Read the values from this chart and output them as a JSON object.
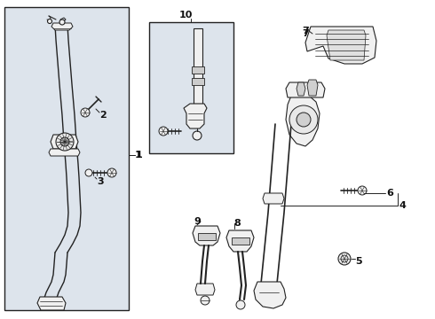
{
  "bg_color": "#ffffff",
  "panel_bg": "#dde4ec",
  "border_color": "#222222",
  "line_color": "#222222",
  "fill_white": "#ffffff",
  "fill_light": "#f0f0f0",
  "figsize": [
    4.9,
    3.6
  ],
  "dpi": 100
}
